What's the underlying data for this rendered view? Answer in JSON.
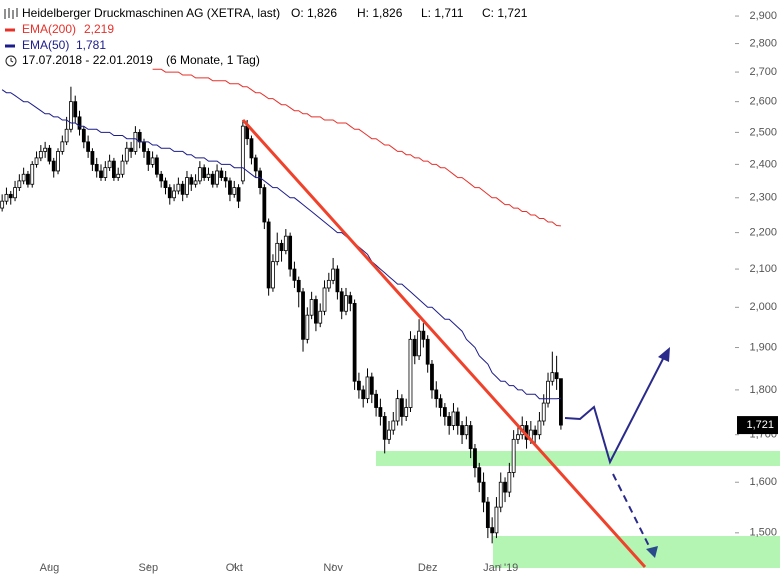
{
  "chart_data": {
    "type": "candlestick",
    "title": "Heidelberger Druckmaschinen AG (XETRA, last)",
    "ohlc_labels": [
      "O: 1,826",
      "H: 1,826",
      "L: 1,711",
      "C: 1,721"
    ],
    "date_range": "17.07.2018 - 22.01.2019",
    "period": "(6 Monate, 1 Tag)",
    "y_scale": "log",
    "ylim": [
      1.416,
      2.96
    ],
    "yticks": [
      {
        "value": 2.9,
        "label": "2,900"
      },
      {
        "value": 2.8,
        "label": "2,800"
      },
      {
        "value": 2.7,
        "label": "2,700"
      },
      {
        "value": 2.6,
        "label": "2,600"
      },
      {
        "value": 2.5,
        "label": "2,500"
      },
      {
        "value": 2.4,
        "label": "2,400"
      },
      {
        "value": 2.3,
        "label": "2,300"
      },
      {
        "value": 2.2,
        "label": "2,200"
      },
      {
        "value": 2.1,
        "label": "2,100"
      },
      {
        "value": 2.0,
        "label": "2,000"
      },
      {
        "value": 1.9,
        "label": "1,900"
      },
      {
        "value": 1.8,
        "label": "1,800"
      },
      {
        "value": 1.7,
        "label": "1,700"
      },
      {
        "value": 1.6,
        "label": "1,600"
      },
      {
        "value": 1.5,
        "label": "1,500"
      }
    ],
    "xlim": [
      -0.5,
      170.5
    ],
    "xticks": [
      {
        "value": 11,
        "label": "Aug"
      },
      {
        "value": 34,
        "label": "Sep"
      },
      {
        "value": 54,
        "label": "Okt"
      },
      {
        "value": 77,
        "label": "Nov"
      },
      {
        "value": 99,
        "label": "Dez"
      },
      {
        "value": 116,
        "label": "Jan '19"
      }
    ],
    "up_color": "#ffffff",
    "down_color": "#000000",
    "last_price_label": "1,721",
    "candles": [
      [
        2.27,
        2.31,
        2.26,
        2.29
      ],
      [
        2.29,
        2.33,
        2.28,
        2.31
      ],
      [
        2.31,
        2.32,
        2.28,
        2.3
      ],
      [
        2.3,
        2.35,
        2.29,
        2.33
      ],
      [
        2.33,
        2.37,
        2.32,
        2.35
      ],
      [
        2.35,
        2.39,
        2.34,
        2.37
      ],
      [
        2.37,
        2.38,
        2.33,
        2.34
      ],
      [
        2.34,
        2.41,
        2.33,
        2.4
      ],
      [
        2.4,
        2.44,
        2.39,
        2.42
      ],
      [
        2.42,
        2.46,
        2.41,
        2.44
      ],
      [
        2.44,
        2.47,
        2.42,
        2.45
      ],
      [
        2.45,
        2.46,
        2.4,
        2.41
      ],
      [
        2.41,
        2.42,
        2.36,
        2.38
      ],
      [
        2.38,
        2.45,
        2.37,
        2.44
      ],
      [
        2.44,
        2.49,
        2.43,
        2.47
      ],
      [
        2.47,
        2.55,
        2.46,
        2.51
      ],
      [
        2.51,
        2.65,
        2.5,
        2.6
      ],
      [
        2.6,
        2.62,
        2.53,
        2.55
      ],
      [
        2.55,
        2.57,
        2.49,
        2.51
      ],
      [
        2.51,
        2.52,
        2.45,
        2.47
      ],
      [
        2.47,
        2.49,
        2.42,
        2.44
      ],
      [
        2.44,
        2.45,
        2.38,
        2.4
      ],
      [
        2.4,
        2.42,
        2.36,
        2.38
      ],
      [
        2.38,
        2.4,
        2.35,
        2.36
      ],
      [
        2.36,
        2.41,
        2.35,
        2.39
      ],
      [
        2.39,
        2.43,
        2.38,
        2.41
      ],
      [
        2.41,
        2.42,
        2.35,
        2.36
      ],
      [
        2.36,
        2.39,
        2.35,
        2.37
      ],
      [
        2.37,
        2.43,
        2.36,
        2.41
      ],
      [
        2.41,
        2.47,
        2.4,
        2.45
      ],
      [
        2.45,
        2.47,
        2.42,
        2.44
      ],
      [
        2.44,
        2.52,
        2.43,
        2.5
      ],
      [
        2.5,
        2.51,
        2.45,
        2.47
      ],
      [
        2.47,
        2.48,
        2.42,
        2.44
      ],
      [
        2.44,
        2.45,
        2.38,
        2.4
      ],
      [
        2.4,
        2.44,
        2.39,
        2.42
      ],
      [
        2.42,
        2.43,
        2.36,
        2.37
      ],
      [
        2.37,
        2.38,
        2.33,
        2.35
      ],
      [
        2.35,
        2.36,
        2.31,
        2.33
      ],
      [
        2.33,
        2.34,
        2.28,
        2.3
      ],
      [
        2.3,
        2.34,
        2.29,
        2.32
      ],
      [
        2.32,
        2.36,
        2.31,
        2.34
      ],
      [
        2.34,
        2.35,
        2.29,
        2.31
      ],
      [
        2.31,
        2.38,
        2.3,
        2.36
      ],
      [
        2.36,
        2.37,
        2.32,
        2.34
      ],
      [
        2.34,
        2.37,
        2.33,
        2.35
      ],
      [
        2.35,
        2.41,
        2.34,
        2.39
      ],
      [
        2.39,
        2.4,
        2.35,
        2.36
      ],
      [
        2.36,
        2.39,
        2.35,
        2.37
      ],
      [
        2.37,
        2.38,
        2.33,
        2.34
      ],
      [
        2.34,
        2.4,
        2.33,
        2.38
      ],
      [
        2.38,
        2.39,
        2.35,
        2.36
      ],
      [
        2.36,
        2.38,
        2.33,
        2.35
      ],
      [
        2.35,
        2.36,
        2.29,
        2.31
      ],
      [
        2.31,
        2.35,
        2.3,
        2.33
      ],
      [
        2.33,
        2.34,
        2.27,
        2.29
      ],
      [
        2.35,
        2.54,
        2.34,
        2.52
      ],
      [
        2.52,
        2.54,
        2.46,
        2.48
      ],
      [
        2.48,
        2.49,
        2.4,
        2.42
      ],
      [
        2.42,
        2.43,
        2.36,
        2.38
      ],
      [
        2.38,
        2.39,
        2.31,
        2.33
      ],
      [
        2.33,
        2.34,
        2.21,
        2.23
      ],
      [
        2.23,
        2.24,
        2.03,
        2.05
      ],
      [
        2.05,
        2.14,
        2.04,
        2.12
      ],
      [
        2.12,
        2.2,
        2.11,
        2.17
      ],
      [
        2.17,
        2.18,
        2.12,
        2.15
      ],
      [
        2.15,
        2.21,
        2.14,
        2.19
      ],
      [
        2.19,
        2.2,
        2.08,
        2.1
      ],
      [
        2.1,
        2.12,
        2.05,
        2.07
      ],
      [
        2.07,
        2.08,
        2.0,
        2.04
      ],
      [
        2.04,
        2.05,
        1.89,
        1.92
      ],
      [
        1.92,
        2.0,
        1.91,
        1.98
      ],
      [
        1.98,
        2.04,
        1.97,
        2.02
      ],
      [
        2.02,
        2.03,
        1.94,
        1.96
      ],
      [
        1.96,
        2.01,
        1.95,
        1.99
      ],
      [
        1.99,
        2.07,
        1.98,
        2.05
      ],
      [
        2.05,
        2.09,
        2.04,
        2.07
      ],
      [
        2.07,
        2.13,
        2.06,
        2.1
      ],
      [
        2.1,
        2.11,
        2.02,
        2.04
      ],
      [
        2.04,
        2.05,
        1.97,
        1.99
      ],
      [
        1.99,
        2.05,
        1.98,
        2.03
      ],
      [
        2.03,
        2.04,
        1.99,
        2.01
      ],
      [
        2.01,
        2.02,
        1.8,
        1.82
      ],
      [
        1.82,
        1.84,
        1.78,
        1.8
      ],
      [
        1.8,
        1.81,
        1.76,
        1.78
      ],
      [
        1.78,
        1.85,
        1.77,
        1.83
      ],
      [
        1.83,
        1.84,
        1.77,
        1.79
      ],
      [
        1.79,
        1.8,
        1.74,
        1.76
      ],
      [
        1.76,
        1.78,
        1.72,
        1.74
      ],
      [
        1.74,
        1.75,
        1.66,
        1.69
      ],
      [
        1.69,
        1.73,
        1.68,
        1.71
      ],
      [
        1.71,
        1.75,
        1.7,
        1.73
      ],
      [
        1.73,
        1.8,
        1.72,
        1.78
      ],
      [
        1.78,
        1.79,
        1.72,
        1.74
      ],
      [
        1.74,
        1.78,
        1.73,
        1.76
      ],
      [
        1.76,
        1.94,
        1.75,
        1.92
      ],
      [
        1.92,
        1.93,
        1.86,
        1.88
      ],
      [
        1.88,
        1.97,
        1.87,
        1.94
      ],
      [
        1.94,
        1.96,
        1.9,
        1.92
      ],
      [
        1.92,
        1.93,
        1.84,
        1.86
      ],
      [
        1.86,
        1.87,
        1.78,
        1.8
      ],
      [
        1.8,
        1.82,
        1.76,
        1.78
      ],
      [
        1.78,
        1.79,
        1.74,
        1.76
      ],
      [
        1.76,
        1.77,
        1.72,
        1.74
      ],
      [
        1.74,
        1.75,
        1.7,
        1.72
      ],
      [
        1.72,
        1.77,
        1.71,
        1.75
      ],
      [
        1.75,
        1.76,
        1.7,
        1.72
      ],
      [
        1.72,
        1.73,
        1.68,
        1.7
      ],
      [
        1.7,
        1.74,
        1.69,
        1.72
      ],
      [
        1.72,
        1.73,
        1.65,
        1.67
      ],
      [
        1.67,
        1.68,
        1.61,
        1.63
      ],
      [
        1.63,
        1.64,
        1.58,
        1.6
      ],
      [
        1.6,
        1.62,
        1.54,
        1.56
      ],
      [
        1.56,
        1.57,
        1.49,
        1.51
      ],
      [
        1.51,
        1.53,
        1.48,
        1.5
      ],
      [
        1.5,
        1.57,
        1.49,
        1.55
      ],
      [
        1.55,
        1.62,
        1.54,
        1.6
      ],
      [
        1.6,
        1.61,
        1.56,
        1.58
      ],
      [
        1.58,
        1.64,
        1.57,
        1.62
      ],
      [
        1.62,
        1.71,
        1.61,
        1.69
      ],
      [
        1.69,
        1.72,
        1.68,
        1.7
      ],
      [
        1.7,
        1.74,
        1.69,
        1.72
      ],
      [
        1.72,
        1.73,
        1.67,
        1.69
      ],
      [
        1.69,
        1.73,
        1.68,
        1.71
      ],
      [
        1.71,
        1.72,
        1.68,
        1.7
      ],
      [
        1.7,
        1.75,
        1.69,
        1.73
      ],
      [
        1.73,
        1.79,
        1.72,
        1.77
      ],
      [
        1.77,
        1.84,
        1.76,
        1.82
      ],
      [
        1.82,
        1.89,
        1.81,
        1.84
      ],
      [
        1.84,
        1.88,
        1.8,
        1.826
      ],
      [
        1.826,
        1.826,
        1.711,
        1.721
      ]
    ],
    "series": [
      {
        "name": "EMA(200)",
        "color": "#e8302a",
        "last_label": "2,219",
        "values": [
          null,
          null,
          null,
          null,
          null,
          null,
          null,
          null,
          null,
          null,
          null,
          null,
          null,
          null,
          null,
          null,
          null,
          null,
          null,
          null,
          null,
          null,
          null,
          null,
          null,
          null,
          null,
          null,
          null,
          null,
          null,
          null,
          null,
          null,
          null,
          2.71,
          2.71,
          2.71,
          2.7,
          2.7,
          2.7,
          2.7,
          2.69,
          2.69,
          2.69,
          2.68,
          2.68,
          2.68,
          2.68,
          2.67,
          2.67,
          2.67,
          2.67,
          2.66,
          2.66,
          2.66,
          2.65,
          2.65,
          2.64,
          2.63,
          2.63,
          2.62,
          2.61,
          2.61,
          2.6,
          2.59,
          2.59,
          2.58,
          2.57,
          2.57,
          2.56,
          2.56,
          2.55,
          2.55,
          2.55,
          2.54,
          2.54,
          2.54,
          2.53,
          2.53,
          2.53,
          2.52,
          2.51,
          2.51,
          2.5,
          2.49,
          2.48,
          2.48,
          2.47,
          2.46,
          2.46,
          2.45,
          2.44,
          2.44,
          2.43,
          2.43,
          2.42,
          2.42,
          2.41,
          2.41,
          2.4,
          2.4,
          2.39,
          2.39,
          2.38,
          2.37,
          2.36,
          2.36,
          2.35,
          2.34,
          2.33,
          2.33,
          2.32,
          2.31,
          2.3,
          2.3,
          2.29,
          2.28,
          2.28,
          2.27,
          2.27,
          2.26,
          2.26,
          2.25,
          2.25,
          2.24,
          2.24,
          2.23,
          2.23,
          2.22,
          2.219
        ]
      },
      {
        "name": "EMA(50)",
        "color": "#1c1c8c",
        "last_label": "1,781",
        "values": [
          2.64,
          2.63,
          2.63,
          2.62,
          2.61,
          2.6,
          2.6,
          2.59,
          2.58,
          2.57,
          2.56,
          2.56,
          2.55,
          2.55,
          2.54,
          2.54,
          2.53,
          2.53,
          2.52,
          2.52,
          2.51,
          2.51,
          2.51,
          2.5,
          2.5,
          2.5,
          2.49,
          2.49,
          2.49,
          2.48,
          2.48,
          2.48,
          2.47,
          2.47,
          2.47,
          2.46,
          2.46,
          2.45,
          2.45,
          2.45,
          2.44,
          2.44,
          2.44,
          2.43,
          2.43,
          2.42,
          2.42,
          2.42,
          2.41,
          2.41,
          2.41,
          2.4,
          2.4,
          2.4,
          2.39,
          2.39,
          2.39,
          2.38,
          2.37,
          2.36,
          2.36,
          2.35,
          2.34,
          2.33,
          2.33,
          2.32,
          2.31,
          2.3,
          2.3,
          2.29,
          2.28,
          2.27,
          2.26,
          2.25,
          2.24,
          2.23,
          2.22,
          2.21,
          2.2,
          2.2,
          2.19,
          2.18,
          2.17,
          2.16,
          2.15,
          2.14,
          2.12,
          2.11,
          2.1,
          2.09,
          2.08,
          2.07,
          2.06,
          2.06,
          2.05,
          2.04,
          2.03,
          2.02,
          2.01,
          2.0,
          2.0,
          1.99,
          1.98,
          1.97,
          1.97,
          1.96,
          1.95,
          1.94,
          1.92,
          1.91,
          1.9,
          1.88,
          1.87,
          1.86,
          1.84,
          1.83,
          1.82,
          1.82,
          1.81,
          1.81,
          1.8,
          1.8,
          1.79,
          1.79,
          1.79,
          1.78,
          1.78,
          1.78,
          1.78,
          1.78,
          1.781
        ]
      }
    ]
  }
}
